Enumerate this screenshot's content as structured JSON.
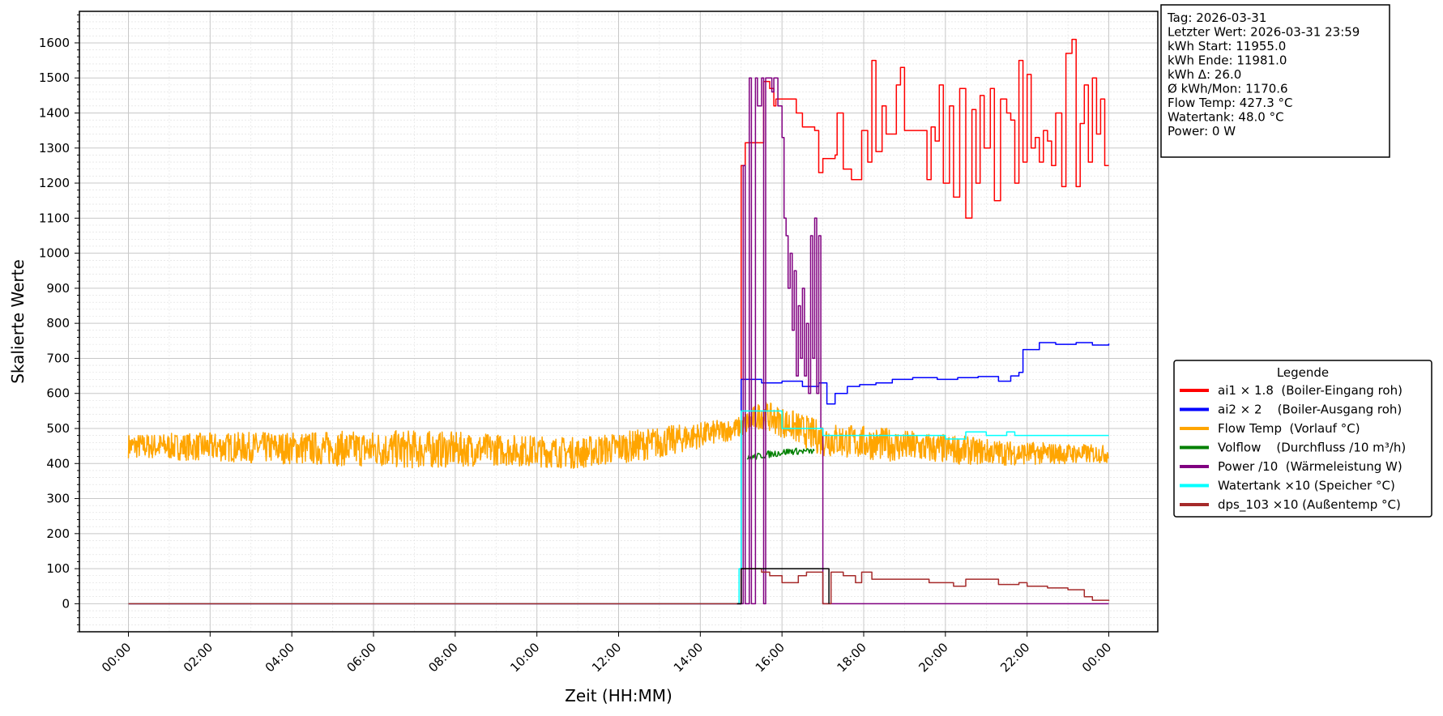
{
  "chart_data": {
    "type": "line",
    "xlabel": "Zeit (HH:MM)",
    "ylabel": "Skalierte Werte",
    "xlim": [
      -1.2,
      25.2
    ],
    "ylim": [
      -80,
      1690
    ],
    "x_unit": "hours",
    "x_ticks": [
      {
        "v": 0,
        "label": "00:00"
      },
      {
        "v": 2,
        "label": "02:00"
      },
      {
        "v": 4,
        "label": "04:00"
      },
      {
        "v": 6,
        "label": "06:00"
      },
      {
        "v": 8,
        "label": "08:00"
      },
      {
        "v": 10,
        "label": "10:00"
      },
      {
        "v": 12,
        "label": "12:00"
      },
      {
        "v": 14,
        "label": "14:00"
      },
      {
        "v": 16,
        "label": "16:00"
      },
      {
        "v": 18,
        "label": "18:00"
      },
      {
        "v": 20,
        "label": "20:00"
      },
      {
        "v": 22,
        "label": "22:00"
      },
      {
        "v": 24,
        "label": "00:00"
      }
    ],
    "y_ticks": [
      0,
      100,
      200,
      300,
      400,
      500,
      600,
      700,
      800,
      900,
      1000,
      1100,
      1200,
      1300,
      1400,
      1500,
      1600
    ],
    "grid": true,
    "info_box": [
      "Tag: 2026-03-31",
      "Letzter Wert: 2026-03-31 23:59",
      "kWh Start:  11955.0",
      "kWh Ende:   11981.0",
      "kWh Δ:      26.0",
      "Ø kWh/Mon:  1170.6",
      "Flow Temp:  427.3 °C",
      "Watertank:  48.0 °C",
      "Power:      0 W"
    ],
    "legend": {
      "title": "Legende",
      "placement": "center-right",
      "entries": [
        {
          "label": "ai1 × 1.8  (Boiler-Eingang roh)",
          "color": "#ff0000"
        },
        {
          "label": "ai2 × 2    (Boiler-Ausgang roh)",
          "color": "#0000ff"
        },
        {
          "label": "Flow Temp  (Vorlauf °C)",
          "color": "#ffa500"
        },
        {
          "label": "Volflow    (Durchfluss /10 m³/h)",
          "color": "#008000"
        },
        {
          "label": "Power /10  (Wärmeleistung W)",
          "color": "#800080"
        },
        {
          "label": "Watertank ×10 (Speicher °C)",
          "color": "#00ffff"
        },
        {
          "label": "dps_103 ×10 (Außentemp °C)",
          "color": "#a52a2a"
        }
      ]
    },
    "series": [
      {
        "color": "#ff0000",
        "style": "step",
        "points": [
          [
            0,
            0
          ],
          [
            14.9,
            0
          ],
          [
            15.0,
            1250
          ],
          [
            15.1,
            1315
          ],
          [
            15.5,
            1315
          ],
          [
            15.55,
            1490
          ],
          [
            15.7,
            1470
          ],
          [
            15.8,
            1420
          ],
          [
            15.85,
            1440
          ],
          [
            16.3,
            1440
          ],
          [
            16.35,
            1400
          ],
          [
            16.5,
            1360
          ],
          [
            16.8,
            1350
          ],
          [
            16.9,
            1230
          ],
          [
            17.0,
            1270
          ],
          [
            17.3,
            1280
          ],
          [
            17.35,
            1400
          ],
          [
            17.5,
            1240
          ],
          [
            17.7,
            1210
          ],
          [
            17.9,
            1210
          ],
          [
            17.95,
            1350
          ],
          [
            18.1,
            1260
          ],
          [
            18.2,
            1550
          ],
          [
            18.3,
            1290
          ],
          [
            18.45,
            1420
          ],
          [
            18.55,
            1340
          ],
          [
            18.75,
            1340
          ],
          [
            18.8,
            1480
          ],
          [
            18.9,
            1530
          ],
          [
            19.0,
            1350
          ],
          [
            19.5,
            1350
          ],
          [
            19.55,
            1210
          ],
          [
            19.65,
            1360
          ],
          [
            19.75,
            1320
          ],
          [
            19.85,
            1480
          ],
          [
            19.95,
            1200
          ],
          [
            20.1,
            1420
          ],
          [
            20.2,
            1160
          ],
          [
            20.35,
            1470
          ],
          [
            20.5,
            1100
          ],
          [
            20.65,
            1410
          ],
          [
            20.75,
            1200
          ],
          [
            20.85,
            1450
          ],
          [
            20.95,
            1300
          ],
          [
            21.1,
            1470
          ],
          [
            21.2,
            1150
          ],
          [
            21.35,
            1440
          ],
          [
            21.5,
            1400
          ],
          [
            21.6,
            1380
          ],
          [
            21.7,
            1200
          ],
          [
            21.8,
            1550
          ],
          [
            21.9,
            1260
          ],
          [
            22.0,
            1510
          ],
          [
            22.1,
            1300
          ],
          [
            22.2,
            1330
          ],
          [
            22.3,
            1260
          ],
          [
            22.4,
            1350
          ],
          [
            22.5,
            1320
          ],
          [
            22.6,
            1250
          ],
          [
            22.7,
            1400
          ],
          [
            22.85,
            1190
          ],
          [
            22.95,
            1570
          ],
          [
            23.1,
            1610
          ],
          [
            23.2,
            1190
          ],
          [
            23.3,
            1370
          ],
          [
            23.4,
            1480
          ],
          [
            23.5,
            1260
          ],
          [
            23.6,
            1500
          ],
          [
            23.7,
            1340
          ],
          [
            23.8,
            1440
          ],
          [
            23.9,
            1250
          ],
          [
            24.0,
            1250
          ]
        ]
      },
      {
        "color": "#0000ff",
        "style": "step",
        "points": [
          [
            0,
            0
          ],
          [
            14.9,
            0
          ],
          [
            15.0,
            640
          ],
          [
            15.5,
            630
          ],
          [
            16.0,
            635
          ],
          [
            16.5,
            620
          ],
          [
            16.9,
            630
          ],
          [
            17.1,
            570
          ],
          [
            17.3,
            600
          ],
          [
            17.6,
            620
          ],
          [
            17.9,
            625
          ],
          [
            18.3,
            630
          ],
          [
            18.7,
            640
          ],
          [
            19.2,
            645
          ],
          [
            19.8,
            640
          ],
          [
            20.3,
            645
          ],
          [
            20.8,
            648
          ],
          [
            21.3,
            635
          ],
          [
            21.6,
            650
          ],
          [
            21.8,
            660
          ],
          [
            21.9,
            725
          ],
          [
            22.3,
            745
          ],
          [
            22.7,
            740
          ],
          [
            23.2,
            745
          ],
          [
            23.6,
            738
          ],
          [
            24.0,
            742
          ]
        ]
      },
      {
        "color": "#ffa500",
        "style": "noise",
        "segments": [
          [
            0,
            450,
            35
          ],
          [
            7,
            440,
            55
          ],
          [
            9,
            440,
            45
          ],
          [
            11,
            430,
            45
          ],
          [
            13,
            460,
            45
          ],
          [
            14.9,
            500,
            30
          ],
          [
            15.5,
            540,
            40
          ],
          [
            16.2,
            510,
            45
          ],
          [
            17.0,
            470,
            50
          ],
          [
            19.5,
            445,
            45
          ],
          [
            21.5,
            430,
            35
          ],
          [
            24.0,
            427,
            25
          ]
        ]
      },
      {
        "color": "#008000",
        "style": "noise-range",
        "segments": [
          [
            15.15,
            415,
            8
          ],
          [
            15.6,
            425,
            10
          ],
          [
            16.2,
            435,
            10
          ],
          [
            16.8,
            435,
            8
          ]
        ]
      },
      {
        "color": "#800080",
        "style": "step",
        "points": [
          [
            0,
            0
          ],
          [
            14.9,
            0
          ],
          [
            15.05,
            1250
          ],
          [
            15.1,
            0
          ],
          [
            15.2,
            1500
          ],
          [
            15.25,
            0
          ],
          [
            15.35,
            1500
          ],
          [
            15.4,
            1420
          ],
          [
            15.5,
            1500
          ],
          [
            15.55,
            0
          ],
          [
            15.6,
            1500
          ],
          [
            15.75,
            1460
          ],
          [
            15.8,
            1500
          ],
          [
            15.9,
            1420
          ],
          [
            16.0,
            1330
          ],
          [
            16.05,
            1100
          ],
          [
            16.1,
            1050
          ],
          [
            16.15,
            900
          ],
          [
            16.2,
            1000
          ],
          [
            16.25,
            780
          ],
          [
            16.3,
            950
          ],
          [
            16.35,
            650
          ],
          [
            16.4,
            850
          ],
          [
            16.45,
            700
          ],
          [
            16.5,
            900
          ],
          [
            16.55,
            650
          ],
          [
            16.6,
            800
          ],
          [
            16.65,
            600
          ],
          [
            16.7,
            1050
          ],
          [
            16.75,
            700
          ],
          [
            16.8,
            1100
          ],
          [
            16.85,
            600
          ],
          [
            16.9,
            1050
          ],
          [
            16.95,
            500
          ],
          [
            17.0,
            0
          ],
          [
            24.0,
            0
          ]
        ]
      },
      {
        "color": "#00ffff",
        "style": "step",
        "points": [
          [
            0,
            0
          ],
          [
            14.9,
            0
          ],
          [
            14.95,
            100
          ],
          [
            15.0,
            550
          ],
          [
            15.9,
            550
          ],
          [
            16.0,
            500
          ],
          [
            17.0,
            480
          ],
          [
            19.5,
            480
          ],
          [
            20.0,
            470
          ],
          [
            20.5,
            490
          ],
          [
            21.0,
            480
          ],
          [
            21.5,
            490
          ],
          [
            21.7,
            480
          ],
          [
            24.0,
            480
          ]
        ]
      },
      {
        "color": "#a52a2a",
        "style": "step",
        "points": [
          [
            0,
            0
          ],
          [
            14.95,
            0
          ],
          [
            15.0,
            100
          ],
          [
            15.5,
            90
          ],
          [
            15.7,
            80
          ],
          [
            16.0,
            60
          ],
          [
            16.4,
            80
          ],
          [
            16.6,
            90
          ],
          [
            17.0,
            0
          ],
          [
            17.2,
            90
          ],
          [
            17.5,
            80
          ],
          [
            17.8,
            60
          ],
          [
            17.95,
            90
          ],
          [
            18.2,
            70
          ],
          [
            19.2,
            70
          ],
          [
            19.6,
            60
          ],
          [
            20.2,
            50
          ],
          [
            20.5,
            70
          ],
          [
            21.3,
            55
          ],
          [
            21.8,
            60
          ],
          [
            22.0,
            50
          ],
          [
            22.5,
            45
          ],
          [
            23.0,
            40
          ],
          [
            23.4,
            20
          ],
          [
            23.6,
            10
          ],
          [
            24.0,
            8
          ]
        ]
      },
      {
        "color": "#000000",
        "style": "step",
        "points": [
          [
            14.9,
            0
          ],
          [
            15.0,
            100
          ],
          [
            17.1,
            100
          ],
          [
            17.15,
            0
          ]
        ]
      }
    ]
  }
}
